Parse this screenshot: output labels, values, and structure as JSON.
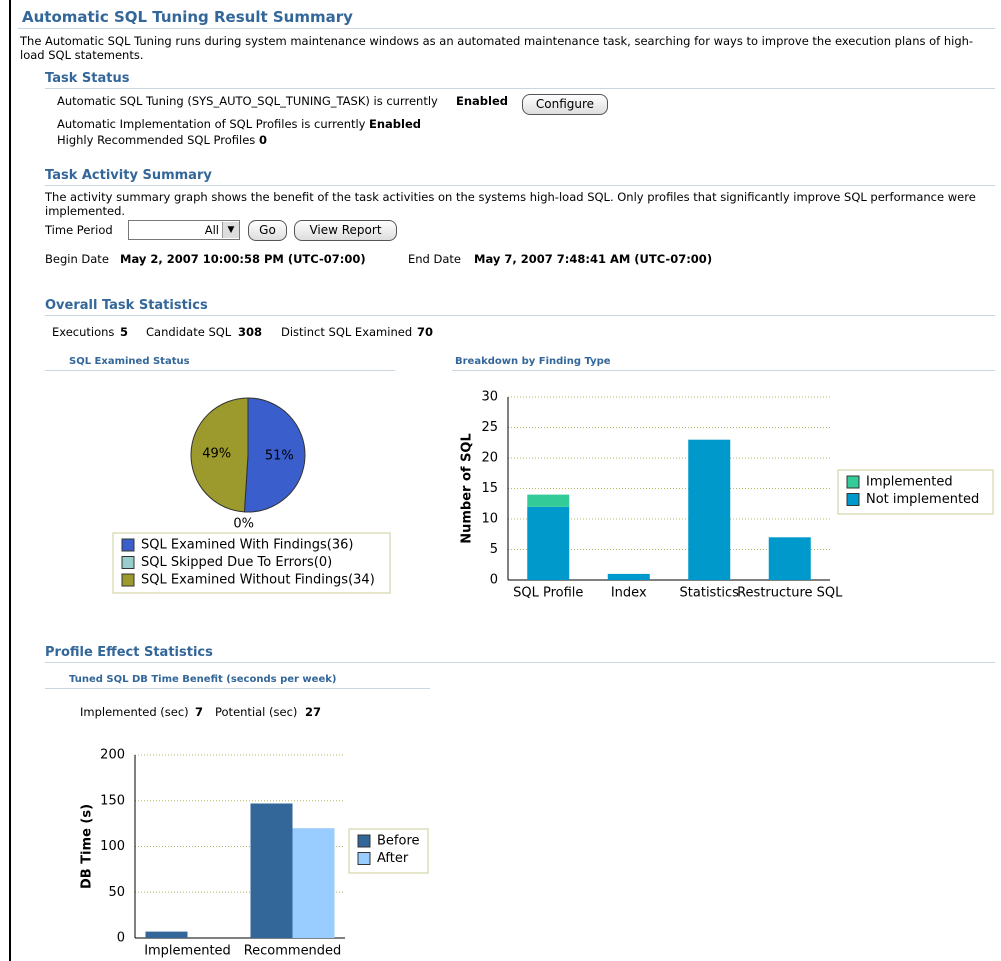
{
  "header": {
    "title": "Automatic SQL Tuning Result Summary",
    "description": "The Automatic SQL Tuning runs during system maintenance windows as an automated maintenance task, searching for ways to improve the execution plans of high-load SQL statements."
  },
  "task_status": {
    "title": "Task Status",
    "rows": [
      {
        "label": "Automatic SQL Tuning (SYS_AUTO_SQL_TUNING_TASK) is currently",
        "value": "Enabled"
      },
      {
        "label": "Automatic Implementation of SQL Profiles is currently",
        "value": "Enabled"
      },
      {
        "label": "Highly Recommended SQL Profiles",
        "value": 0
      }
    ],
    "button": "Configure"
  },
  "activity": {
    "title": "Task Activity Summary",
    "description": "The activity summary graph shows the benefit of the task activities on the systems high-load SQL. Only profiles that significantly improve SQL performance were implemented.",
    "time_period_label": "Time Period",
    "time_period_value": "All",
    "go": "Go",
    "view_report": "View Report",
    "begin_label": "Begin Date",
    "begin_value": "May 2, 2007 10:00:58 PM (UTC-07:00)",
    "end_label": "End Date",
    "end_value": "May 7, 2007 7:48:41 AM (UTC-07:00)"
  },
  "overall": {
    "title": "Overall Task Statistics",
    "stats": [
      {
        "label": "Executions",
        "value": 5
      },
      {
        "label": "Candidate SQL",
        "value": 308
      },
      {
        "label": "Distinct SQL Examined",
        "value": 70
      }
    ]
  },
  "profile": {
    "title": "Profile Effect Statistics",
    "stats": [
      {
        "label": "Implemented (sec)",
        "value": 7
      },
      {
        "label": "Potential (sec)",
        "value": 27
      }
    ]
  },
  "chart_data": [
    {
      "type": "pie",
      "title": "SQL Examined Status",
      "categories": [
        "SQL Examined With Findings(36)",
        "SQL Skipped Due To Errors(0)",
        "SQL Examined Without Findings(34)"
      ],
      "values": [
        51,
        0,
        49
      ],
      "value_labels": [
        "51%",
        "0%",
        "49%"
      ],
      "colors": [
        "#3a5fcd",
        "#99cccc",
        "#9c9a2c"
      ]
    },
    {
      "type": "bar",
      "stacked": true,
      "title": "Breakdown by Finding Type",
      "y_label": "Number of SQL",
      "categories": [
        "SQL Profile",
        "Index",
        "Statistics",
        "Restructure SQL"
      ],
      "series": [
        {
          "name": "Implemented",
          "color": "#33cc99",
          "values": [
            2,
            0,
            0,
            0
          ]
        },
        {
          "name": "Not implemented",
          "color": "#0099cc",
          "values": [
            12,
            1,
            23,
            7
          ]
        }
      ],
      "ylim": [
        0,
        30
      ],
      "yticks": [
        0,
        5,
        10,
        15,
        20,
        25,
        30
      ],
      "grid": true
    },
    {
      "type": "bar",
      "stacked": false,
      "title": "Tuned SQL DB Time Benefit (seconds per week)",
      "y_label": "DB Time (s)",
      "categories": [
        "Implemented",
        "Recommended"
      ],
      "series": [
        {
          "name": "Before",
          "color": "#336699",
          "values": [
            7,
            147
          ]
        },
        {
          "name": "After",
          "color": "#99ccff",
          "values": [
            0,
            120
          ]
        }
      ],
      "ylim": [
        0,
        200
      ],
      "yticks": [
        0,
        50,
        100,
        150,
        200
      ],
      "grid": true
    }
  ]
}
